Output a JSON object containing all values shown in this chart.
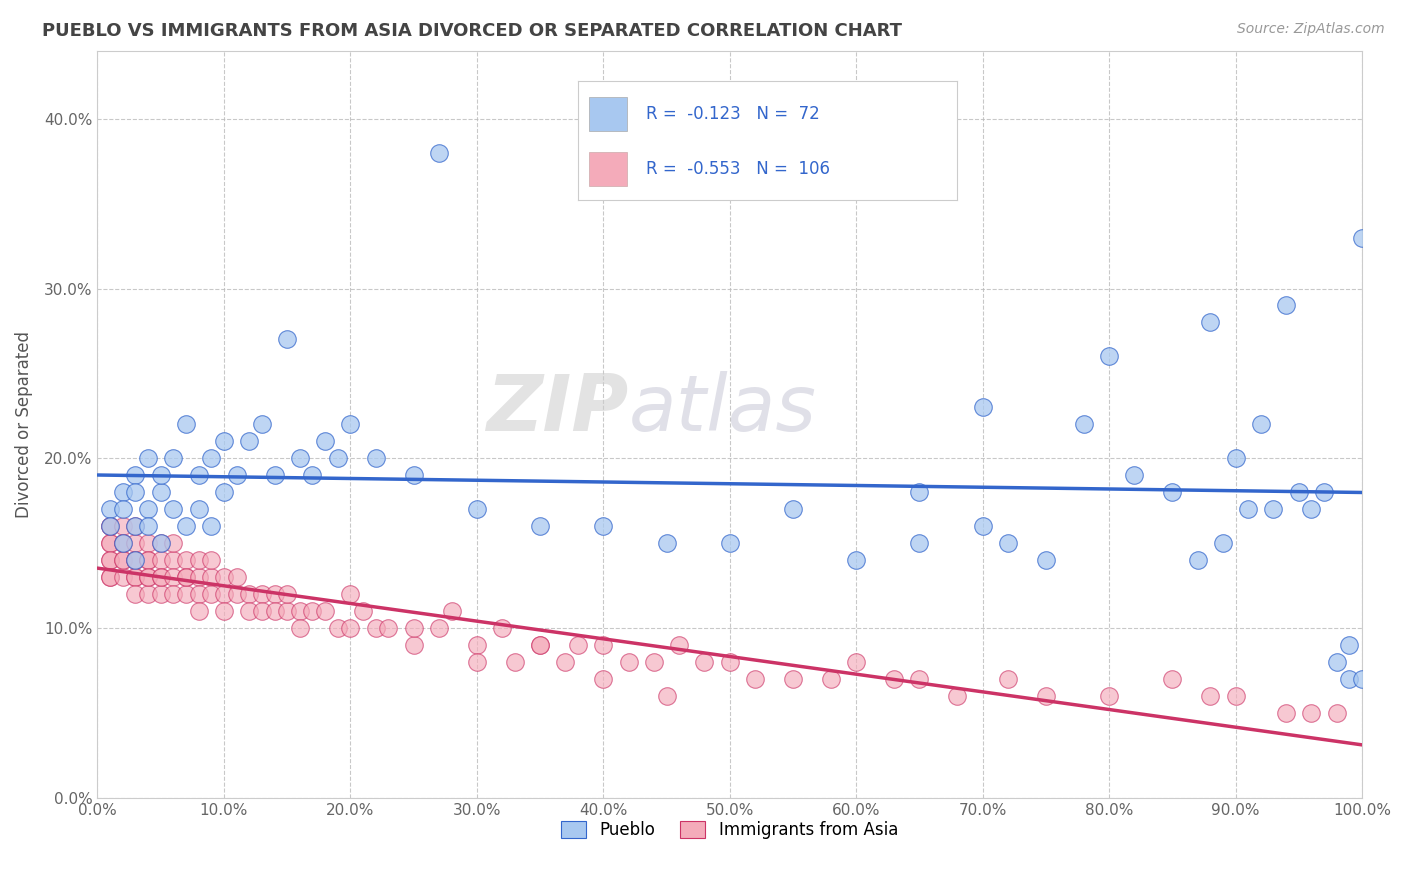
{
  "title": "PUEBLO VS IMMIGRANTS FROM ASIA DIVORCED OR SEPARATED CORRELATION CHART",
  "source": "Source: ZipAtlas.com",
  "ylabel": "Divorced or Separated",
  "legend_labels": [
    "Pueblo",
    "Immigrants from Asia"
  ],
  "blue_R": -0.123,
  "blue_N": 72,
  "pink_R": -0.553,
  "pink_N": 106,
  "blue_color": "#A8C8F0",
  "pink_color": "#F4ABBA",
  "blue_line_color": "#3366CC",
  "pink_line_color": "#CC3366",
  "watermark_zip": "ZIP",
  "watermark_atlas": "atlas",
  "background_color": "#FFFFFF",
  "xlim": [
    0.0,
    1.0
  ],
  "ylim": [
    0.0,
    0.44
  ],
  "blue_scatter_x": [
    0.01,
    0.01,
    0.02,
    0.02,
    0.02,
    0.03,
    0.03,
    0.03,
    0.03,
    0.04,
    0.04,
    0.04,
    0.05,
    0.05,
    0.05,
    0.06,
    0.06,
    0.07,
    0.07,
    0.08,
    0.08,
    0.09,
    0.09,
    0.1,
    0.1,
    0.11,
    0.12,
    0.13,
    0.14,
    0.15,
    0.16,
    0.17,
    0.18,
    0.19,
    0.2,
    0.22,
    0.25,
    0.3,
    0.35,
    0.4,
    0.45,
    0.5,
    0.55,
    0.6,
    0.65,
    0.65,
    0.7,
    0.7,
    0.72,
    0.75,
    0.78,
    0.8,
    0.82,
    0.85,
    0.87,
    0.88,
    0.89,
    0.9,
    0.91,
    0.92,
    0.93,
    0.94,
    0.95,
    0.96,
    0.97,
    0.98,
    0.99,
    0.99,
    1.0,
    1.0,
    0.5,
    0.27
  ],
  "blue_scatter_y": [
    0.17,
    0.16,
    0.18,
    0.15,
    0.17,
    0.19,
    0.16,
    0.14,
    0.18,
    0.17,
    0.16,
    0.2,
    0.18,
    0.19,
    0.15,
    0.2,
    0.17,
    0.22,
    0.16,
    0.19,
    0.17,
    0.2,
    0.16,
    0.21,
    0.18,
    0.19,
    0.21,
    0.22,
    0.19,
    0.27,
    0.2,
    0.19,
    0.21,
    0.2,
    0.22,
    0.2,
    0.19,
    0.17,
    0.16,
    0.16,
    0.15,
    0.15,
    0.17,
    0.14,
    0.18,
    0.15,
    0.16,
    0.23,
    0.15,
    0.14,
    0.22,
    0.26,
    0.19,
    0.18,
    0.14,
    0.28,
    0.15,
    0.2,
    0.17,
    0.22,
    0.17,
    0.29,
    0.18,
    0.17,
    0.18,
    0.08,
    0.07,
    0.09,
    0.07,
    0.33,
    0.36,
    0.38
  ],
  "pink_scatter_x": [
    0.01,
    0.01,
    0.01,
    0.01,
    0.01,
    0.01,
    0.01,
    0.01,
    0.02,
    0.02,
    0.02,
    0.02,
    0.02,
    0.02,
    0.03,
    0.03,
    0.03,
    0.03,
    0.03,
    0.03,
    0.03,
    0.04,
    0.04,
    0.04,
    0.04,
    0.04,
    0.04,
    0.05,
    0.05,
    0.05,
    0.05,
    0.05,
    0.06,
    0.06,
    0.06,
    0.06,
    0.07,
    0.07,
    0.07,
    0.07,
    0.08,
    0.08,
    0.08,
    0.08,
    0.09,
    0.09,
    0.09,
    0.1,
    0.1,
    0.1,
    0.11,
    0.11,
    0.12,
    0.12,
    0.13,
    0.13,
    0.14,
    0.14,
    0.15,
    0.15,
    0.16,
    0.16,
    0.17,
    0.18,
    0.19,
    0.2,
    0.21,
    0.22,
    0.23,
    0.25,
    0.27,
    0.28,
    0.3,
    0.32,
    0.33,
    0.35,
    0.37,
    0.38,
    0.4,
    0.42,
    0.44,
    0.46,
    0.48,
    0.5,
    0.52,
    0.55,
    0.58,
    0.6,
    0.63,
    0.65,
    0.68,
    0.72,
    0.75,
    0.8,
    0.85,
    0.88,
    0.9,
    0.94,
    0.96,
    0.98,
    0.3,
    0.35,
    0.4,
    0.45,
    0.2,
    0.25
  ],
  "pink_scatter_y": [
    0.16,
    0.15,
    0.14,
    0.13,
    0.15,
    0.14,
    0.13,
    0.16,
    0.15,
    0.14,
    0.13,
    0.16,
    0.14,
    0.15,
    0.14,
    0.13,
    0.15,
    0.14,
    0.13,
    0.12,
    0.16,
    0.14,
    0.13,
    0.15,
    0.12,
    0.14,
    0.13,
    0.13,
    0.15,
    0.12,
    0.14,
    0.13,
    0.14,
    0.13,
    0.12,
    0.15,
    0.13,
    0.14,
    0.12,
    0.13,
    0.13,
    0.14,
    0.12,
    0.11,
    0.13,
    0.12,
    0.14,
    0.13,
    0.12,
    0.11,
    0.12,
    0.13,
    0.12,
    0.11,
    0.12,
    0.11,
    0.12,
    0.11,
    0.11,
    0.12,
    0.11,
    0.1,
    0.11,
    0.11,
    0.1,
    0.1,
    0.11,
    0.1,
    0.1,
    0.09,
    0.1,
    0.11,
    0.09,
    0.1,
    0.08,
    0.09,
    0.08,
    0.09,
    0.09,
    0.08,
    0.08,
    0.09,
    0.08,
    0.08,
    0.07,
    0.07,
    0.07,
    0.08,
    0.07,
    0.07,
    0.06,
    0.07,
    0.06,
    0.06,
    0.07,
    0.06,
    0.06,
    0.05,
    0.05,
    0.05,
    0.08,
    0.09,
    0.07,
    0.06,
    0.12,
    0.1
  ]
}
